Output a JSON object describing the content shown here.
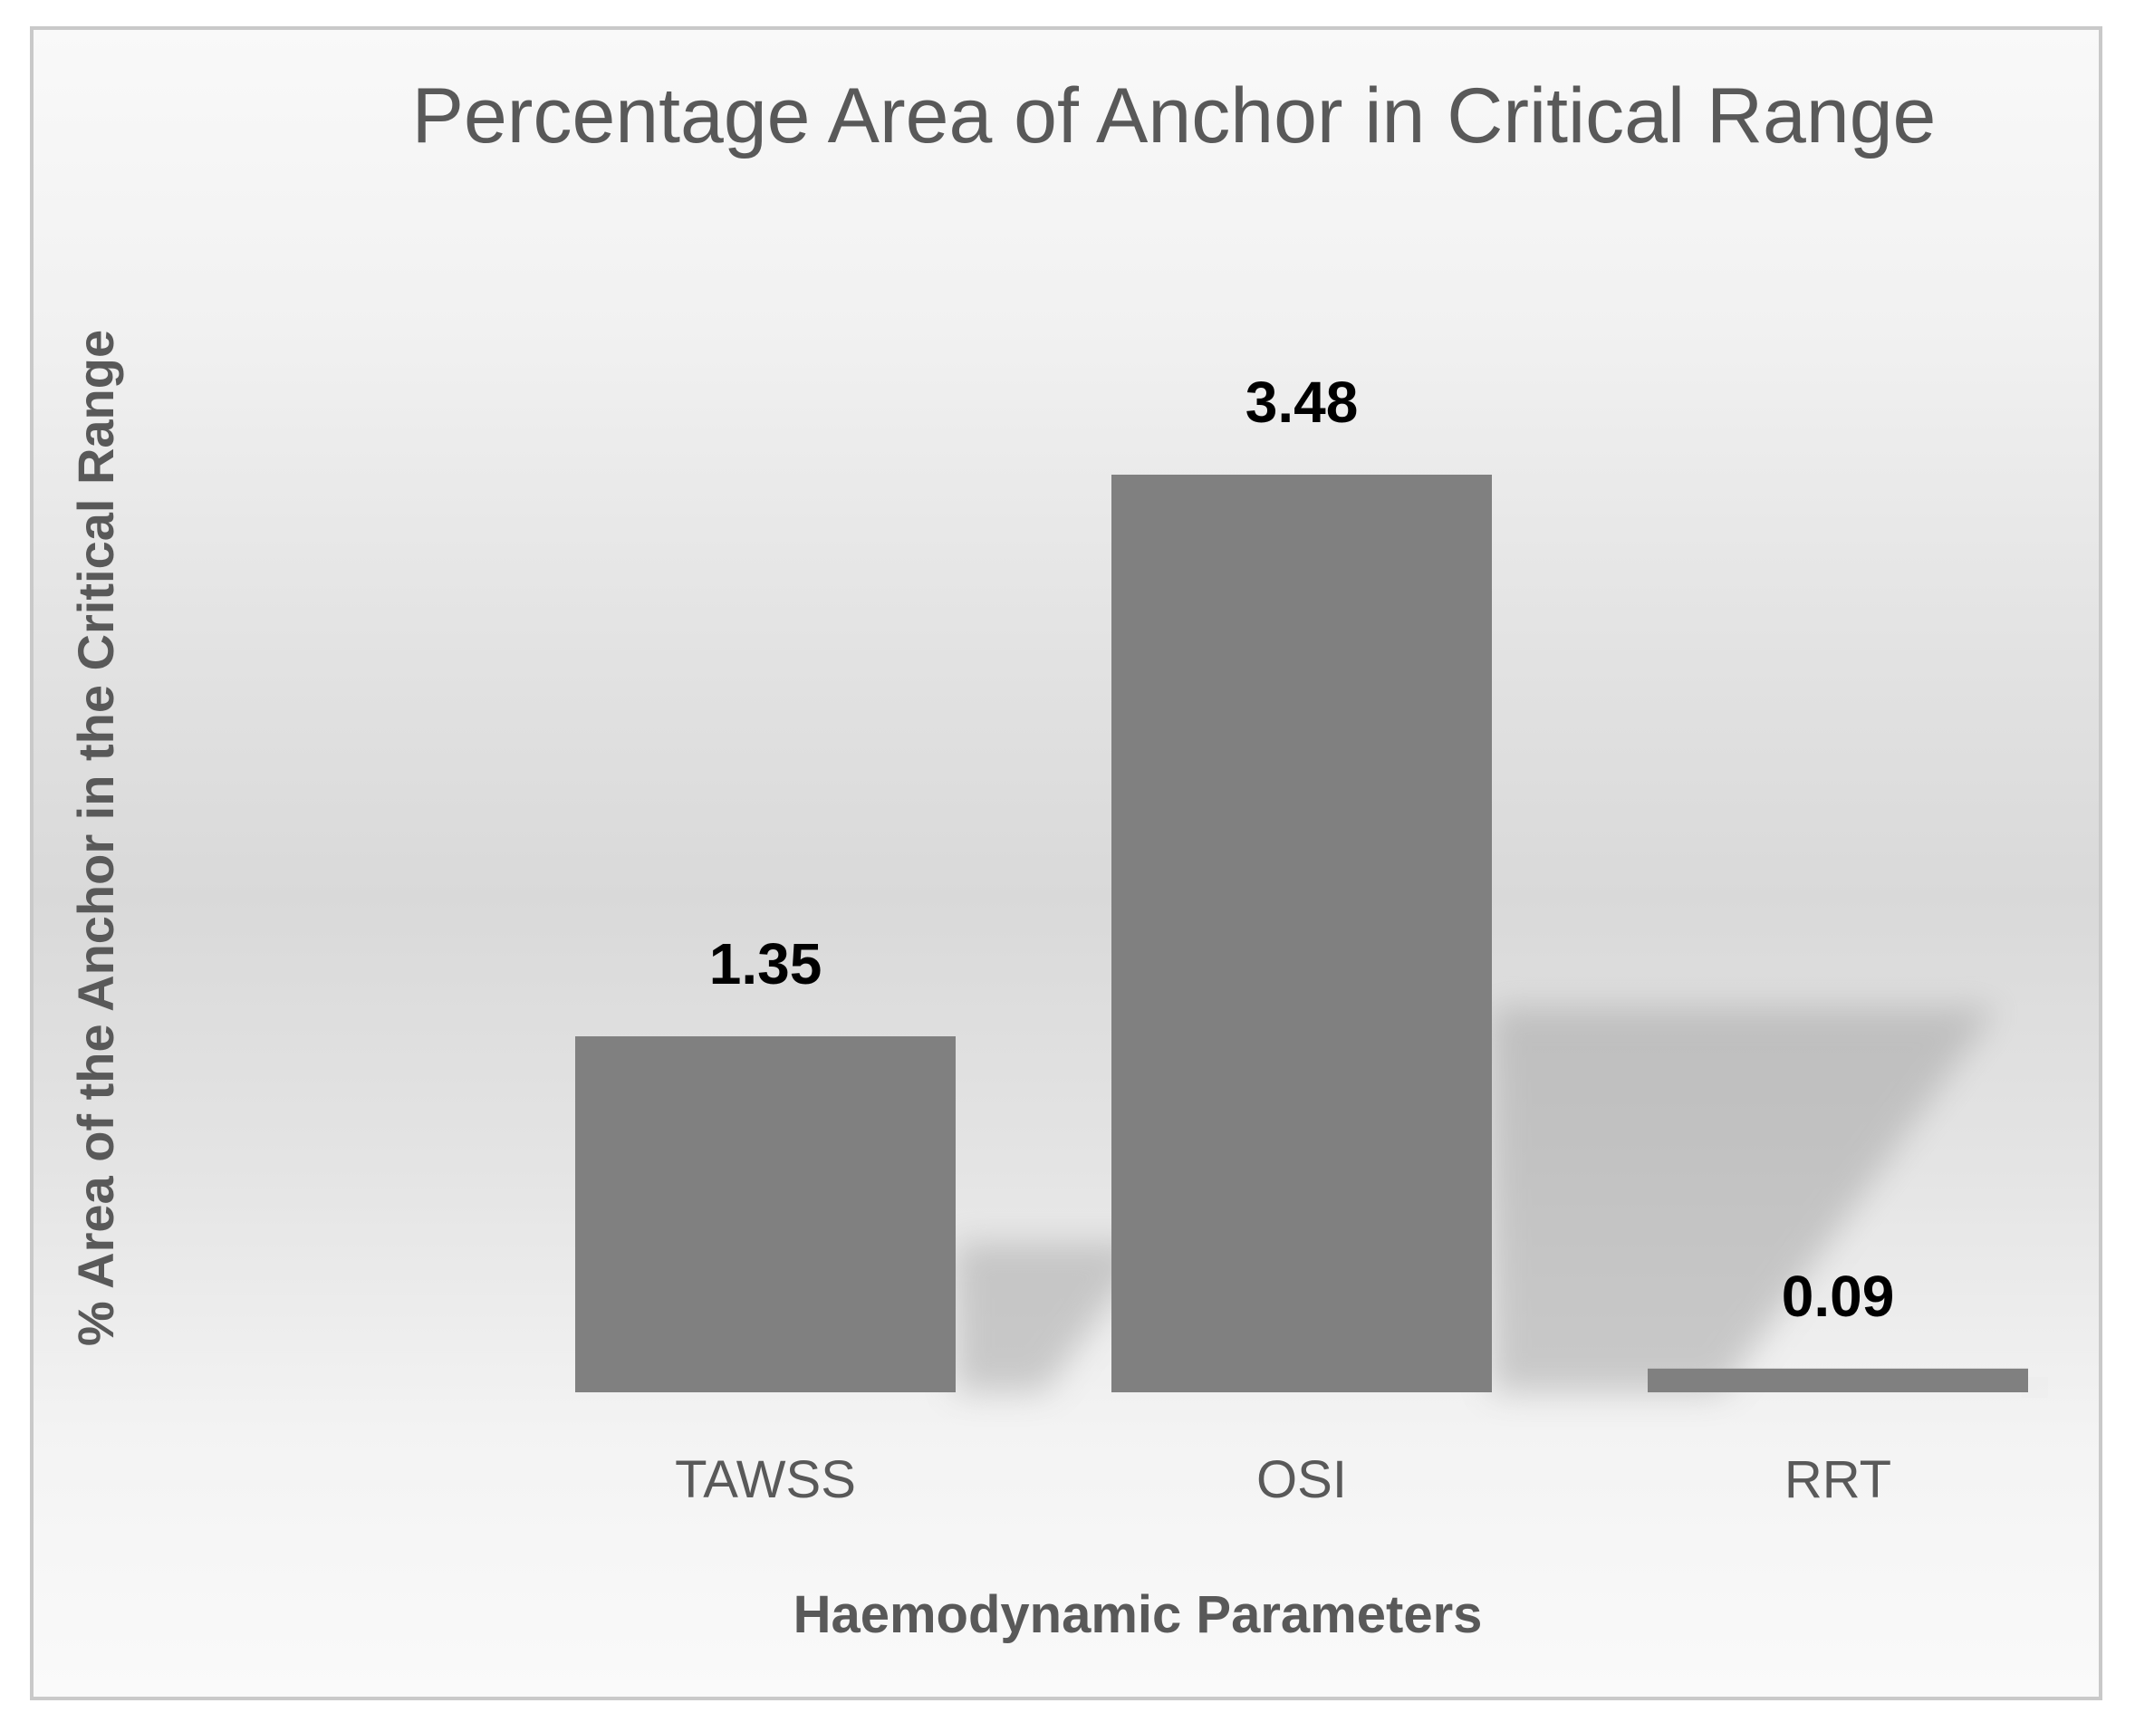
{
  "chart_data": {
    "type": "bar",
    "title": "Percentage Area of Anchor in Critical Range",
    "xlabel": "Haemodynamic Parameters",
    "ylabel": "% Area of the Anchor in the Critical Range",
    "categories": [
      "TAWSS",
      "OSI",
      "RRT"
    ],
    "values": [
      1.35,
      3.48,
      0.09
    ],
    "data_labels": [
      "1.35",
      "3.48",
      "0.09"
    ],
    "ylim": [
      0,
      3.48
    ],
    "grid": false,
    "legend": "none",
    "colors": {
      "bar": "#808080",
      "shadow": "#9a9a9a",
      "title": "#595959",
      "axis_text": "#595959",
      "data_label": "#000000",
      "frame_border": "#c9c9c9"
    }
  }
}
